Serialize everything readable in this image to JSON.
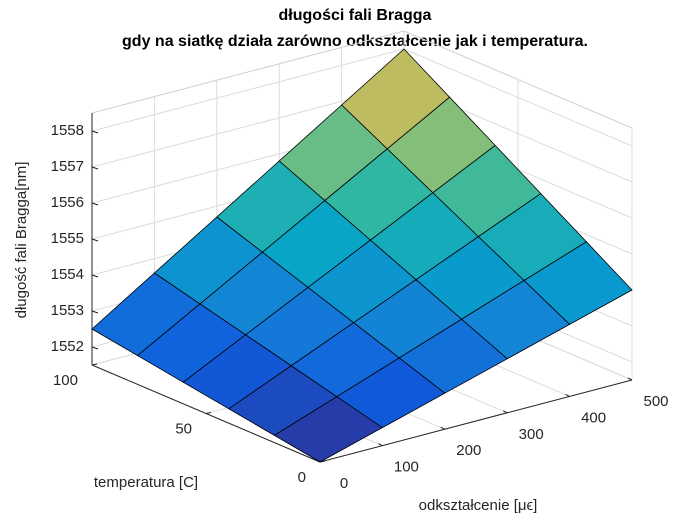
{
  "chart_data": {
    "type": "surface",
    "title": [
      "długości fali Bragga",
      "gdy na siatkę działa zarówno odkształcenie jak i temperatura."
    ],
    "xlabel": "odkształcenie [μϵ]",
    "ylabel": "temperatura  [C]",
    "zlabel": "długość fali Bragga[nm]",
    "x": [
      0,
      100,
      200,
      300,
      400,
      500
    ],
    "y": [
      0,
      20,
      40,
      60,
      80,
      100
    ],
    "z": [
      [
        1551.5,
        1552,
        1552.5,
        1553,
        1553.5,
        1554
      ],
      [
        1551.7,
        1552.32,
        1552.94,
        1553.56,
        1554.18,
        1554.8
      ],
      [
        1551.9,
        1552.64,
        1553.38,
        1554.12,
        1554.86,
        1555.6
      ],
      [
        1552.1,
        1552.96,
        1553.82,
        1554.68,
        1555.54,
        1556.4
      ],
      [
        1552.3,
        1553.28,
        1554.26,
        1555.24,
        1556.22,
        1557.2
      ],
      [
        1552.5,
        1553.6,
        1554.7,
        1555.8,
        1556.9,
        1558
      ]
    ],
    "xlim": [
      0,
      500
    ],
    "xticks": [
      0,
      100,
      200,
      300,
      400,
      500
    ],
    "ylim": [
      0,
      100
    ],
    "yticks": [
      0,
      50,
      100
    ],
    "zlim": [
      1551.5,
      1558.5
    ],
    "zticks": [
      1552,
      1553,
      1554,
      1555,
      1556,
      1557,
      1558
    ],
    "colormap": "parula",
    "grid": true,
    "edge_color": "#000000"
  }
}
